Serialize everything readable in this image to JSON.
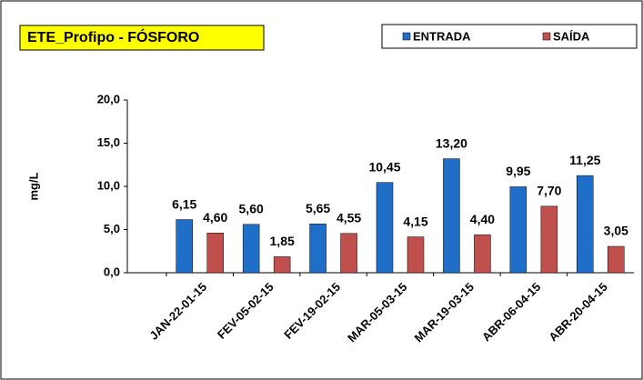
{
  "chart_data": {
    "type": "bar",
    "title": "ETE_Profipo - FÓSFORO",
    "y_label": "mg/L",
    "categories": [
      "JAN-22-01-15",
      "FEV-05-02-15",
      "FEV-19-02-15",
      "MAR-05-03-15",
      "MAR-19-03-15",
      "ABR-06-04-15",
      "ABR-20-04-15"
    ],
    "series": [
      {
        "name": "ENTRADA",
        "color": "#1f6fc8",
        "values": [
          6.15,
          5.6,
          5.65,
          10.45,
          13.2,
          9.95,
          11.25
        ],
        "value_labels": [
          "6,15",
          "5,60",
          "5,65",
          "10,45",
          "13,20",
          "9,95",
          "11,25"
        ]
      },
      {
        "name": "SAÍDA",
        "color": "#c0504d",
        "values": [
          4.6,
          1.85,
          4.55,
          4.15,
          4.4,
          7.7,
          3.05
        ],
        "value_labels": [
          "4,60",
          "1,85",
          "4,55",
          "4,15",
          "4,40",
          "7,70",
          "3,05"
        ]
      }
    ],
    "ylim": [
      0,
      20
    ],
    "yticks": [
      {
        "value": 0,
        "label": "0,0"
      },
      {
        "value": 5,
        "label": "5,0"
      },
      {
        "value": 10,
        "label": "10,0"
      },
      {
        "value": 15,
        "label": "15,0"
      },
      {
        "value": 20,
        "label": "20,0"
      }
    ],
    "legend": "top-right",
    "grid": false
  }
}
